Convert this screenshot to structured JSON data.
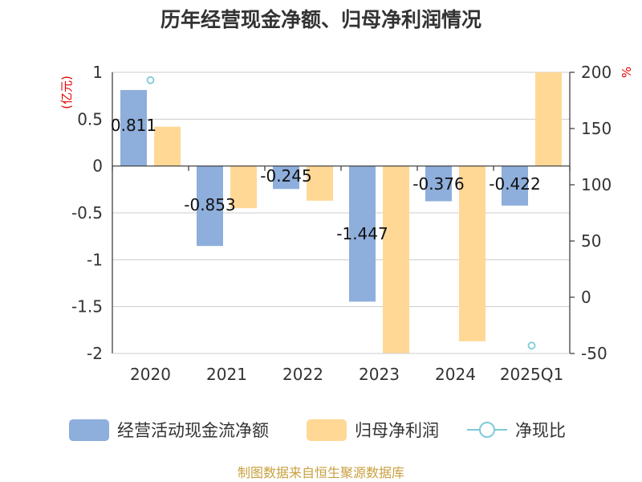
{
  "chart_data": {
    "type": "bar",
    "title": "历年经营现金净额、归母净利润情况",
    "categories": [
      "2020",
      "2021",
      "2022",
      "2023",
      "2024",
      "2025Q1"
    ],
    "left_axis": {
      "unit": "(亿元)",
      "ylim": [
        -2,
        1
      ],
      "ticks": [
        "1",
        "0.5",
        "0",
        "-0.5",
        "-1",
        "-1.5",
        "-2"
      ],
      "tick_values": [
        1,
        0.5,
        0,
        -0.5,
        -1,
        -1.5,
        -2
      ]
    },
    "right_axis": {
      "unit": "%",
      "ylim": [
        -50,
        200
      ],
      "ticks": [
        "200",
        "150",
        "100",
        "50",
        "0",
        "-50"
      ],
      "tick_values": [
        200,
        150,
        100,
        50,
        0,
        -50
      ]
    },
    "series": [
      {
        "name": "经营活动现金流净额",
        "axis": "left",
        "kind": "bar",
        "color": "#8eaedc",
        "values": [
          0.811,
          -0.853,
          -0.245,
          -1.447,
          -0.376,
          -0.422
        ],
        "labels": [
          "0.811",
          "-0.853",
          "-0.245",
          "-1.447",
          "-0.376",
          "-0.422"
        ]
      },
      {
        "name": "归母净利润",
        "axis": "left",
        "kind": "bar",
        "color": "#ffd896",
        "values": [
          0.42,
          -0.45,
          -0.37,
          -2.0,
          -1.87,
          1.0
        ]
      },
      {
        "name": "净现比",
        "axis": "right",
        "kind": "point",
        "color": "#7ecad8",
        "values": [
          193,
          null,
          null,
          null,
          null,
          -43
        ]
      }
    ],
    "grid": true,
    "legend_position": "bottom"
  },
  "source": "制图数据来自恒生聚源数据库"
}
